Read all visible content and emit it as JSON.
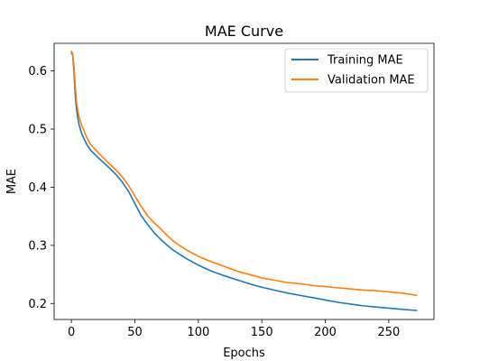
{
  "chart_data": {
    "type": "line",
    "title": "MAE Curve",
    "xlabel": "Epochs",
    "ylabel": "MAE",
    "xlim": [
      -13.6,
      285.6
    ],
    "ylim": [
      0.1725,
      0.6475
    ],
    "xticks": [
      0,
      50,
      100,
      150,
      200,
      250
    ],
    "yticks": [
      0.2,
      0.3,
      0.4,
      0.5,
      0.6
    ],
    "ytick_labels": [
      "0.2",
      "0.3",
      "0.4",
      "0.5",
      "0.6"
    ],
    "grid": false,
    "legend_position": "top-right",
    "series": [
      {
        "name": "Training MAE",
        "color": "#1f77b4",
        "x": [
          0,
          1,
          2,
          3,
          4,
          5,
          6,
          8,
          10,
          12,
          15,
          20,
          25,
          30,
          35,
          40,
          45,
          50,
          55,
          60,
          65,
          70,
          75,
          80,
          85,
          90,
          95,
          100,
          110,
          120,
          130,
          140,
          150,
          160,
          170,
          180,
          190,
          200,
          210,
          220,
          230,
          240,
          250,
          260,
          272
        ],
        "y": [
          0.631,
          0.628,
          0.6,
          0.56,
          0.535,
          0.52,
          0.508,
          0.493,
          0.483,
          0.474,
          0.464,
          0.453,
          0.443,
          0.433,
          0.422,
          0.409,
          0.393,
          0.372,
          0.351,
          0.336,
          0.322,
          0.311,
          0.301,
          0.292,
          0.285,
          0.278,
          0.272,
          0.266,
          0.256,
          0.248,
          0.241,
          0.234,
          0.228,
          0.223,
          0.218,
          0.214,
          0.21,
          0.206,
          0.202,
          0.199,
          0.196,
          0.194,
          0.192,
          0.19,
          0.188
        ]
      },
      {
        "name": "Validation MAE",
        "color": "#ff7f0e",
        "x": [
          0,
          1,
          2,
          3,
          4,
          5,
          6,
          8,
          10,
          12,
          15,
          20,
          25,
          30,
          35,
          40,
          45,
          50,
          55,
          60,
          65,
          70,
          75,
          80,
          85,
          90,
          95,
          100,
          110,
          120,
          130,
          140,
          150,
          160,
          170,
          180,
          190,
          200,
          210,
          220,
          230,
          240,
          250,
          260,
          272
        ],
        "y": [
          0.634,
          0.63,
          0.61,
          0.575,
          0.548,
          0.532,
          0.522,
          0.507,
          0.497,
          0.486,
          0.474,
          0.462,
          0.451,
          0.44,
          0.43,
          0.418,
          0.403,
          0.385,
          0.367,
          0.351,
          0.339,
          0.329,
          0.318,
          0.308,
          0.3,
          0.293,
          0.287,
          0.281,
          0.272,
          0.264,
          0.256,
          0.25,
          0.244,
          0.24,
          0.236,
          0.234,
          0.231,
          0.229,
          0.227,
          0.225,
          0.223,
          0.222,
          0.22,
          0.218,
          0.214
        ]
      }
    ]
  }
}
